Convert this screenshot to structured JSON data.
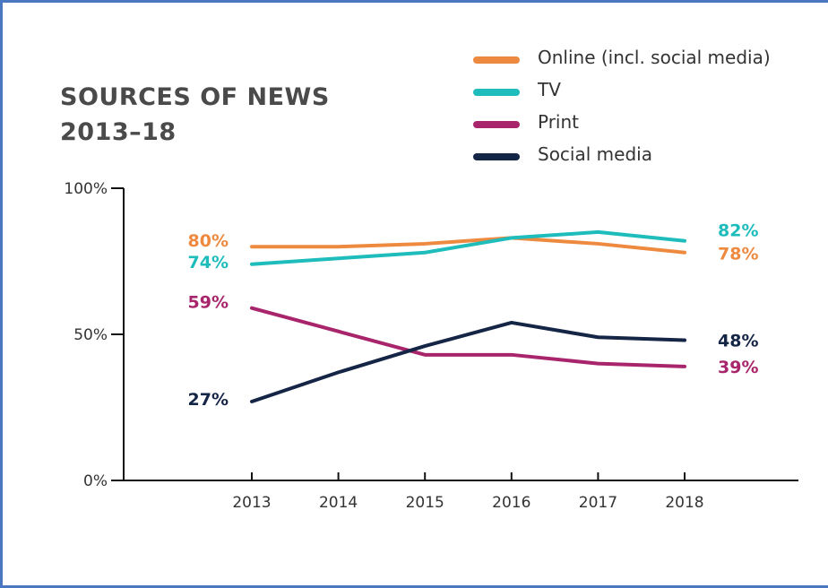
{
  "chart_data": {
    "type": "line",
    "title_lines": [
      "SOURCES OF NEWS",
      "2013–18"
    ],
    "x": [
      2013,
      2014,
      2015,
      2016,
      2017,
      2018
    ],
    "x_tick_labels": [
      "2013",
      "2014",
      "2015",
      "2016",
      "2017",
      "2018"
    ],
    "ylim": [
      0,
      100
    ],
    "y_ticks": [
      0,
      50,
      100
    ],
    "y_tick_labels": [
      "0%",
      "50%",
      "100%"
    ],
    "grid": false,
    "legend_position": "top-right",
    "series": [
      {
        "name": "Online (incl. social media)",
        "color": "#ee8a3f",
        "values": [
          80,
          80,
          81,
          83,
          81,
          78
        ],
        "start_label": "80%",
        "end_label": "78%"
      },
      {
        "name": "TV",
        "color": "#1fbcbc",
        "values": [
          74,
          76,
          78,
          83,
          85,
          82
        ],
        "start_label": "74%",
        "end_label": "82%"
      },
      {
        "name": "Print",
        "color": "#a8256b",
        "values": [
          59,
          51,
          43,
          43,
          40,
          39
        ],
        "start_label": "59%",
        "end_label": "39%"
      },
      {
        "name": "Social media",
        "color": "#152546",
        "values": [
          27,
          37,
          46,
          54,
          49,
          48
        ],
        "start_label": "27%",
        "end_label": "48%"
      }
    ]
  }
}
